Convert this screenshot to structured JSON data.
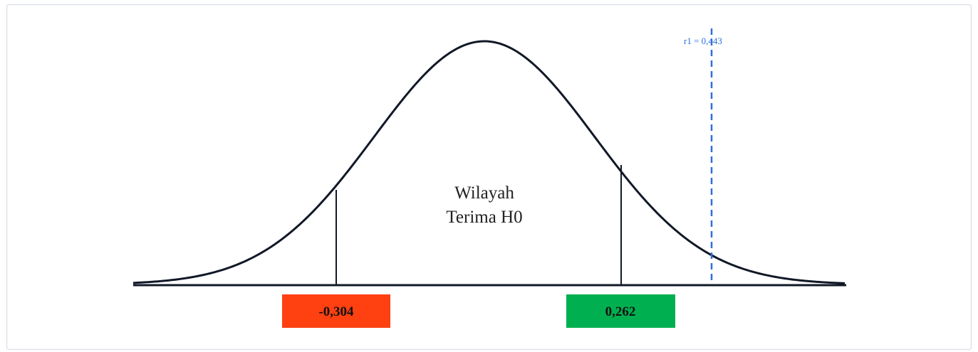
{
  "left_critical": "-0,304",
  "right_critical": "0,262",
  "region_label": [
    "Wilayah",
    "Terima H0"
  ],
  "r_label": "r1 = 0,443"
}
